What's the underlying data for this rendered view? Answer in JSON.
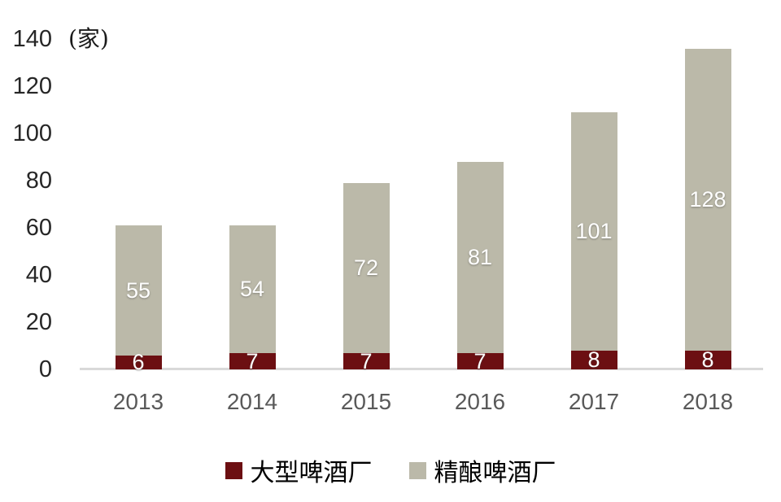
{
  "chart_data": {
    "type": "bar",
    "stacked": true,
    "title": "",
    "unit_label": "(家)",
    "xlabel": "",
    "ylabel": "(家)",
    "categories": [
      "2013",
      "2014",
      "2015",
      "2016",
      "2017",
      "2018"
    ],
    "series": [
      {
        "name": "大型啤酒厂",
        "key": "large-brewery",
        "color": "#6C0F12",
        "values": [
          6,
          7,
          7,
          7,
          8,
          8
        ]
      },
      {
        "name": "精酿啤酒厂",
        "key": "craft-brewery",
        "color": "#BBB9A9",
        "values": [
          55,
          54,
          72,
          81,
          101,
          128
        ]
      }
    ],
    "totals": [
      61,
      61,
      79,
      88,
      109,
      136
    ],
    "ylim": [
      0,
      140
    ],
    "yticks": [
      0,
      20,
      40,
      60,
      80,
      100,
      120,
      140
    ],
    "grid": false,
    "legend_position": "bottom",
    "value_labels": "inside-white",
    "colors": {
      "axis_line": "#D9D9D9",
      "x_tick_label": "#595959",
      "y_tick_label": "#262626",
      "value_label": "#FFFFFF",
      "background": "#FFFFFF"
    }
  }
}
